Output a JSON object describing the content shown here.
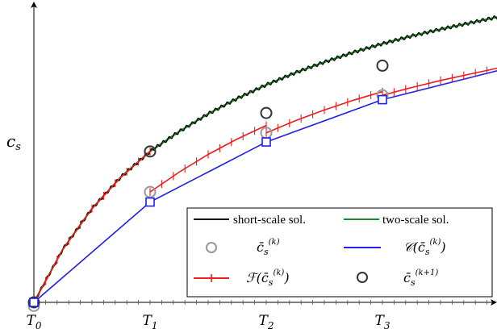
{
  "chart_data": {
    "type": "line",
    "title": "",
    "ylabel": "c_s",
    "ylabel_base": "c",
    "ylabel_sub": "s",
    "xlim": [
      0,
      4.06
    ],
    "ylim": [
      0,
      1.0
    ],
    "grid": false,
    "legend_position": "bottom-right",
    "x_ticks": [
      {
        "label": "T0",
        "base": "T",
        "sub": "0",
        "x": 0
      },
      {
        "label": "T1",
        "base": "T",
        "sub": "1",
        "x": 1
      },
      {
        "label": "T2",
        "base": "T",
        "sub": "2",
        "x": 2
      },
      {
        "label": "T3",
        "base": "T",
        "sub": "3",
        "x": 3
      }
    ],
    "minor_ticks_per_interval": 20,
    "legend": [
      {
        "label": "short-scale sol.",
        "key": "short"
      },
      {
        "label": "two-scale sol.",
        "key": "two"
      },
      {
        "label": "c̄_s^(k)",
        "key": "ck"
      },
      {
        "label": "𝒞(c̄_s^(k))",
        "key": "coarse"
      },
      {
        "label": "ℱ(c̄_s^(k))",
        "key": "fine"
      },
      {
        "label": "c̄_s^(k+1)",
        "key": "ck1"
      }
    ],
    "series": [
      {
        "key": "two",
        "color": "#1a8a1a",
        "x": [
          0,
          0.25,
          0.5,
          0.75,
          1.0,
          1.25,
          1.5,
          1.75,
          2.0,
          2.25,
          2.5,
          2.75,
          3.0,
          3.25,
          3.5,
          3.75,
          4.0,
          4.06
        ],
        "y": [
          0.0,
          0.18,
          0.317,
          0.424,
          0.51,
          0.577,
          0.637,
          0.689,
          0.735,
          0.776,
          0.812,
          0.845,
          0.874,
          0.9,
          0.923,
          0.944,
          0.965,
          0.97
        ]
      },
      {
        "key": "short",
        "color": "#000000",
        "oscillation_amplitude": 0.006,
        "oscillations_per_interval": 20,
        "x": [
          0,
          0.25,
          0.5,
          0.75,
          1.0,
          1.25,
          1.5,
          1.75,
          2.0,
          2.25,
          2.5,
          2.75,
          3.0,
          3.25,
          3.5,
          3.75,
          4.0,
          4.06
        ],
        "y": [
          0.0,
          0.18,
          0.317,
          0.424,
          0.51,
          0.577,
          0.637,
          0.689,
          0.735,
          0.776,
          0.812,
          0.845,
          0.874,
          0.9,
          0.923,
          0.944,
          0.965,
          0.97
        ]
      },
      {
        "key": "coarse",
        "color": "#1f1fe6",
        "x": [
          0,
          1,
          2,
          3,
          4.06
        ],
        "y": [
          0.0,
          0.339,
          0.542,
          0.685,
          0.79
        ]
      },
      {
        "key": "fine",
        "color": "#ee1c1c",
        "segments": [
          {
            "x": [
              0,
              0.25,
              0.5,
              0.75,
              1.0
            ],
            "y": [
              0.0,
              0.18,
              0.317,
              0.424,
              0.51
            ]
          },
          {
            "x": [
              1.0,
              1.25,
              1.5,
              1.75,
              2.0
            ],
            "y": [
              0.373,
              0.44,
              0.5,
              0.552,
              0.598
            ]
          },
          {
            "x": [
              2.0,
              2.25,
              2.5,
              2.75,
              3.0
            ],
            "y": [
              0.573,
              0.614,
              0.65,
              0.683,
              0.712
            ]
          },
          {
            "x": [
              3.0,
              3.25,
              3.5,
              3.75,
              4.0,
              4.06
            ],
            "y": [
              0.7,
              0.726,
              0.75,
              0.771,
              0.792,
              0.797
            ]
          }
        ]
      }
    ],
    "markers": [
      {
        "key": "ck",
        "style": "circle",
        "color": "#999999",
        "x": [
          0,
          1,
          2,
          3,
          4.06
        ],
        "y": [
          -0.012,
          0.373,
          0.573,
          0.7,
          0.81
        ]
      },
      {
        "key": "ck1",
        "style": "circle",
        "color": "#333333",
        "x": [
          0,
          1,
          2,
          3,
          4.06
        ],
        "y": [
          0.0,
          0.51,
          0.64,
          0.8,
          0.93
        ]
      },
      {
        "key": "coarse_sq",
        "style": "square",
        "color": "#1f1fe6",
        "x": [
          0,
          1,
          2,
          3
        ],
        "y": [
          0.0,
          0.339,
          0.542,
          0.685
        ]
      }
    ]
  }
}
